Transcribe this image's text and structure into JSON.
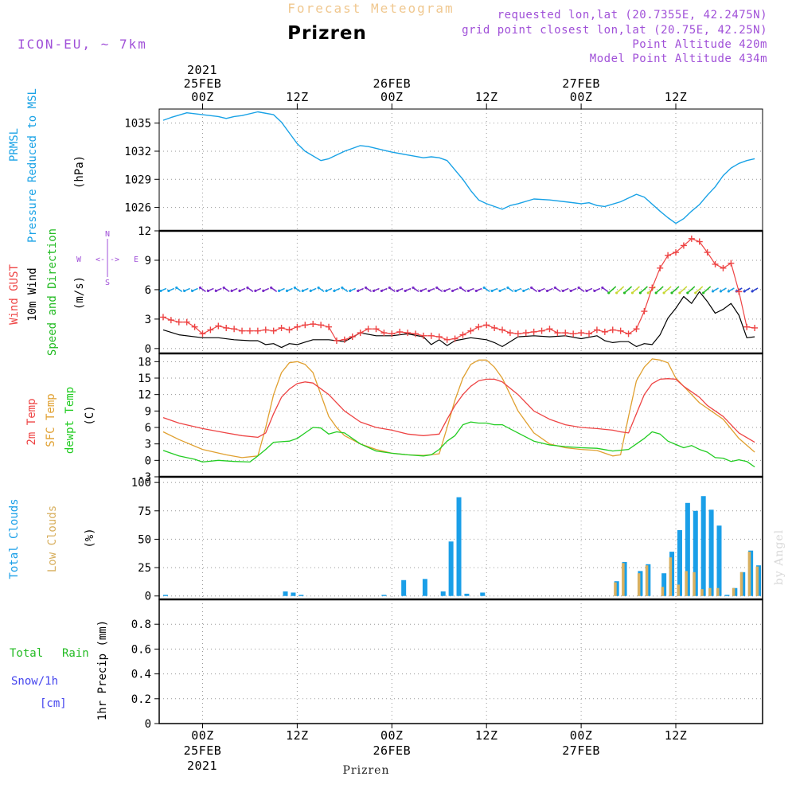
{
  "header": {
    "product_title": "Forecast Meteogram",
    "location_title": "Prizren",
    "model": "ICON-EU, ~ 7km",
    "requested": "requested lon,lat (20.7355E, 42.2475N)",
    "grid_point": "grid point closest lon,lat (20.75E, 42.25N)",
    "point_altitude": "Point Altitude 420m",
    "model_altitude": "Model Point Altitude 434m",
    "footer_location": "Prizren",
    "watermark": "by Angel"
  },
  "time_axis": {
    "top_year": "2021",
    "bottom_year": "2021",
    "date_labels": [
      "25FEB",
      "26FEB",
      "27FEB"
    ],
    "tick_labels": [
      "00Z",
      "12Z",
      "00Z",
      "12Z",
      "00Z",
      "12Z"
    ],
    "tick_hours": [
      0,
      12,
      24,
      36,
      48,
      60
    ],
    "range_hours": [
      -5.5,
      71
    ]
  },
  "colors": {
    "pressure": "#19a2e6",
    "gust": "#ee4444",
    "wind": "#000000",
    "wind_dir": "#22bb22",
    "temp": "#ee4444",
    "sfc_temp": "#e0a030",
    "dewpt": "#22cc22",
    "total_clouds": "#1a9fe8",
    "low_clouds": "#d8b060",
    "rain": "#22bb22",
    "snow": "#4444ee",
    "purple": "#a050d8",
    "title_orange": "#f0c890"
  },
  "panels": {
    "pressure": {
      "labels": [
        "PRMSL",
        "Pressure Reduced to MSL",
        "(hPa)"
      ]
    },
    "wind": {
      "labels": [
        "Wind GUST",
        "10m Wind",
        "Speed and Direction",
        "(m/s)"
      ],
      "compass": {
        "n": "N",
        "s": "S",
        "w": "W",
        "e": "E",
        "arrows": "<-|->"
      }
    },
    "temperature": {
      "labels": [
        "2m Temp",
        "SFC Temp",
        "dewpt Temp",
        "(C)"
      ]
    },
    "clouds": {
      "labels": [
        "Total Clouds",
        "Low Clouds",
        "(%)"
      ]
    },
    "precip": {
      "labels": [
        "Total",
        "Rain",
        "Snow/1h",
        "[cm]",
        "1hr Precip (mm)"
      ]
    }
  },
  "chart_data": [
    {
      "type": "line",
      "title": "PRMSL Pressure Reduced to MSL",
      "ylabel": "(hPa)",
      "ylim": [
        1023.5,
        1036.5
      ],
      "yticks": [
        1026,
        1029,
        1032,
        1035
      ],
      "series": [
        {
          "name": "PRMSL",
          "x": [
            -5,
            -4,
            -2,
            0,
            2,
            3,
            4,
            5,
            7,
            9,
            10,
            12,
            13,
            15,
            16,
            18,
            20,
            21,
            23,
            24,
            26,
            28,
            29,
            30,
            31,
            33,
            34,
            35,
            36,
            38,
            39,
            40,
            42,
            44,
            46,
            48,
            49,
            50,
            51,
            53,
            55,
            56,
            58,
            59,
            60,
            61,
            62,
            63,
            64,
            65,
            66,
            67,
            68,
            69,
            70
          ],
          "values": [
            1035.3,
            1035.6,
            1036.1,
            1035.9,
            1035.7,
            1035.5,
            1035.7,
            1035.8,
            1036.2,
            1035.9,
            1035.1,
            1032.8,
            1032.0,
            1031.0,
            1031.2,
            1032.0,
            1032.6,
            1032.5,
            1032.1,
            1031.9,
            1031.6,
            1031.3,
            1031.4,
            1031.3,
            1031.0,
            1029.0,
            1027.8,
            1026.8,
            1026.4,
            1025.8,
            1026.2,
            1026.4,
            1026.9,
            1026.8,
            1026.6,
            1026.4,
            1026.5,
            1026.2,
            1026.1,
            1026.6,
            1027.4,
            1027.1,
            1025.6,
            1024.9,
            1024.3,
            1024.8,
            1025.6,
            1026.3,
            1027.3,
            1028.2,
            1029.4,
            1030.2,
            1030.7,
            1031.0,
            1031.2
          ]
        }
      ]
    },
    {
      "type": "line",
      "title": "Wind GUST / 10m Wind Speed and Direction",
      "ylabel": "(m/s)",
      "ylim": [
        -0.5,
        12
      ],
      "yticks": [
        0,
        3,
        6,
        9,
        12
      ],
      "direction_band_value": 6,
      "series": [
        {
          "name": "Wind GUST",
          "x": [
            -5,
            -4,
            -3,
            -2,
            -1,
            0,
            1,
            2,
            3,
            4,
            5,
            6,
            7,
            8,
            9,
            10,
            11,
            12,
            13,
            14,
            15,
            16,
            17,
            18,
            19,
            20,
            21,
            22,
            23,
            24,
            25,
            26,
            27,
            28,
            29,
            30,
            31,
            32,
            33,
            34,
            35,
            36,
            37,
            38,
            39,
            40,
            41,
            42,
            43,
            44,
            45,
            46,
            47,
            48,
            49,
            50,
            51,
            52,
            53,
            54,
            55,
            56,
            57,
            58,
            59,
            60,
            61,
            62,
            63,
            64,
            65,
            66,
            67,
            68,
            69,
            70
          ],
          "values": [
            3.2,
            2.9,
            2.7,
            2.7,
            2.2,
            1.5,
            1.9,
            2.3,
            2.1,
            2.0,
            1.8,
            1.8,
            1.8,
            1.9,
            1.8,
            2.1,
            1.9,
            2.2,
            2.4,
            2.5,
            2.4,
            2.2,
            0.8,
            0.9,
            1.2,
            1.6,
            2.0,
            2.0,
            1.6,
            1.5,
            1.7,
            1.6,
            1.5,
            1.3,
            1.3,
            1.2,
            0.9,
            1.0,
            1.4,
            1.8,
            2.2,
            2.4,
            2.1,
            1.9,
            1.6,
            1.5,
            1.6,
            1.7,
            1.8,
            2.0,
            1.6,
            1.6,
            1.5,
            1.6,
            1.5,
            1.9,
            1.7,
            1.9,
            1.8,
            1.5,
            2.0,
            3.8,
            6.2,
            8.2,
            9.5,
            9.8,
            10.5,
            11.2,
            10.9,
            9.8,
            8.6,
            8.2,
            8.7,
            5.8,
            2.2,
            2.1
          ]
        },
        {
          "name": "10m Wind",
          "x": [
            -5,
            -3,
            0,
            2,
            4,
            6,
            7,
            8,
            9,
            10,
            11,
            12,
            14,
            16,
            18,
            20,
            22,
            24,
            26,
            28,
            29,
            30,
            31,
            32,
            34,
            36,
            37,
            38,
            40,
            42,
            44,
            46,
            48,
            50,
            51,
            52,
            53,
            54,
            55,
            56,
            57,
            58,
            59,
            60,
            61,
            62,
            63,
            64,
            65,
            66,
            67,
            68,
            69,
            70
          ],
          "values": [
            1.9,
            1.4,
            1.1,
            1.1,
            0.9,
            0.8,
            0.8,
            0.4,
            0.5,
            0.1,
            0.5,
            0.4,
            0.9,
            0.9,
            0.7,
            1.6,
            1.3,
            1.3,
            1.5,
            1.2,
            0.4,
            0.9,
            0.3,
            0.8,
            1.1,
            0.9,
            0.6,
            0.2,
            1.2,
            1.3,
            1.2,
            1.3,
            1.0,
            1.3,
            0.8,
            0.6,
            0.7,
            0.7,
            0.2,
            0.5,
            0.4,
            1.4,
            3.1,
            4.1,
            5.3,
            4.6,
            5.8,
            4.8,
            3.6,
            4.0,
            4.6,
            3.4,
            1.1,
            1.2
          ]
        }
      ]
    },
    {
      "type": "line",
      "title": "2m Temp / SFC Temp / dewpt Temp",
      "ylabel": "(C)",
      "ylim": [
        -3,
        19.5
      ],
      "yticks": [
        -3,
        0,
        3,
        6,
        9,
        12,
        15,
        18
      ],
      "series": [
        {
          "name": "2m Temp",
          "x": [
            -5,
            -3,
            0,
            3,
            5,
            7,
            8,
            9,
            10,
            11,
            12,
            13,
            14,
            16,
            18,
            20,
            22,
            24,
            26,
            28,
            30,
            31,
            32,
            33,
            34,
            35,
            36,
            37,
            38,
            40,
            42,
            44,
            46,
            48,
            50,
            52,
            53,
            54,
            55,
            56,
            57,
            58,
            59,
            60,
            61,
            62,
            63,
            64,
            66,
            68,
            70
          ],
          "values": [
            7.8,
            6.8,
            5.8,
            5.0,
            4.5,
            4.2,
            5.0,
            8.5,
            11.5,
            13.0,
            14.0,
            14.3,
            14.1,
            12.0,
            9.0,
            7.0,
            6.0,
            5.5,
            4.8,
            4.5,
            4.8,
            7.5,
            10.0,
            12.0,
            13.5,
            14.5,
            14.8,
            14.8,
            14.3,
            12.0,
            9.0,
            7.5,
            6.5,
            6.0,
            5.8,
            5.5,
            5.2,
            5.0,
            8.5,
            12.0,
            14.0,
            14.8,
            14.9,
            14.8,
            13.5,
            12.5,
            11.5,
            10.0,
            8.0,
            5.0,
            3.3
          ]
        },
        {
          "name": "SFC Temp",
          "x": [
            -5,
            -3,
            0,
            3,
            5,
            7,
            8,
            9,
            10,
            11,
            12,
            13,
            14,
            15,
            16,
            17,
            18,
            20,
            22,
            24,
            26,
            28,
            30,
            31,
            32,
            33,
            34,
            35,
            36,
            37,
            38,
            40,
            42,
            44,
            46,
            48,
            50,
            52,
            53,
            54,
            55,
            56,
            57,
            58,
            59,
            60,
            61,
            62,
            63,
            64,
            66,
            68,
            70
          ],
          "values": [
            5.2,
            3.8,
            2.0,
            1.0,
            0.5,
            0.8,
            6.0,
            12.0,
            16.0,
            17.8,
            18.0,
            17.5,
            16.0,
            12.0,
            8.0,
            6.0,
            4.5,
            3.0,
            2.0,
            1.3,
            1.0,
            0.9,
            1.2,
            6.0,
            11.0,
            15.0,
            17.5,
            18.3,
            18.3,
            17.0,
            15.0,
            9.0,
            5.0,
            3.0,
            2.3,
            2.0,
            1.8,
            0.8,
            1.0,
            8.0,
            14.5,
            17.0,
            18.5,
            18.3,
            17.8,
            15.0,
            13.5,
            12.0,
            10.5,
            9.5,
            7.5,
            4.0,
            1.5
          ]
        },
        {
          "name": "dewpt Temp",
          "x": [
            -5,
            -3,
            -1,
            0,
            2,
            4,
            6,
            7,
            8,
            9,
            10,
            11,
            12,
            13,
            14,
            15,
            16,
            17,
            18,
            20,
            22,
            24,
            26,
            28,
            29,
            30,
            31,
            32,
            33,
            34,
            35,
            36,
            37,
            38,
            40,
            42,
            44,
            46,
            48,
            50,
            52,
            54,
            55,
            56,
            57,
            58,
            59,
            60,
            61,
            62,
            63,
            64,
            65,
            66,
            67,
            68,
            69,
            70
          ],
          "values": [
            1.8,
            0.8,
            0.2,
            -0.3,
            0.0,
            -0.2,
            -0.3,
            0.8,
            2.0,
            3.3,
            3.4,
            3.5,
            4.0,
            5.0,
            6.0,
            5.9,
            4.8,
            5.2,
            5.0,
            3.0,
            1.7,
            1.3,
            1.0,
            0.8,
            1.0,
            2.0,
            3.5,
            4.5,
            6.5,
            7.0,
            6.8,
            6.8,
            6.5,
            6.5,
            5.0,
            3.5,
            2.8,
            2.5,
            2.3,
            2.2,
            1.7,
            2.0,
            3.0,
            4.0,
            5.2,
            4.8,
            3.5,
            2.9,
            2.3,
            2.7,
            2.0,
            1.5,
            0.5,
            0.4,
            -0.2,
            0.1,
            -0.2,
            -1.2
          ]
        }
      ]
    },
    {
      "type": "bar",
      "title": "Total Clouds / Low Clouds",
      "ylabel": "(%)",
      "ylim": [
        -3,
        105
      ],
      "yticks": [
        0,
        25,
        50,
        75,
        100
      ],
      "series": [
        {
          "name": "Total Clouds",
          "x": [
            -4.7,
            10.5,
            11.5,
            12.5,
            23,
            25.5,
            28.2,
            30.5,
            31.5,
            32.5,
            33.5,
            35.5,
            52.5,
            53.5,
            55.5,
            56.5,
            58.5,
            59.5,
            60.5,
            61.5,
            62.5,
            63.5,
            64.5,
            65.5,
            66.5,
            67.5,
            68.5,
            69.5,
            70.5
          ],
          "values": [
            1,
            4,
            3,
            1,
            1,
            14,
            15,
            4,
            48,
            87,
            2,
            3,
            13,
            30,
            22,
            28,
            20,
            39,
            58,
            82,
            75,
            88,
            76,
            62,
            1,
            7,
            21,
            40,
            27
          ]
        },
        {
          "name": "Low Clouds",
          "x": [
            52.5,
            53.5,
            55.5,
            56.5,
            58.5,
            59.5,
            60.5,
            61.5,
            62.5,
            63.5,
            64.5,
            65.5,
            67.5,
            68.5,
            69.5,
            70.5
          ],
          "values": [
            12,
            29,
            20,
            27,
            8,
            34,
            10,
            22,
            21,
            6,
            7,
            7,
            7,
            21,
            39,
            26
          ]
        }
      ]
    },
    {
      "type": "bar",
      "title": "1hr Precip (mm)",
      "ylabel": "1hr Precip (mm)",
      "ylim": [
        0,
        1.0
      ],
      "yticks": [
        0,
        0.2,
        0.4,
        0.6,
        0.8
      ],
      "ytick_labels": [
        "0",
        "0.2",
        "0.4",
        "0.6",
        "0.8"
      ],
      "series": [
        {
          "name": "Total Rain",
          "x": [],
          "values": []
        },
        {
          "name": "Snow/1h",
          "x": [],
          "values": []
        }
      ]
    }
  ]
}
